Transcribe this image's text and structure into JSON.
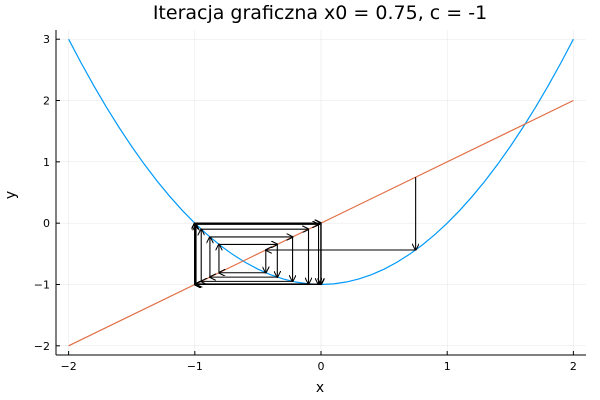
{
  "chart_data": {
    "type": "line",
    "title": "Iteracja graficzna x0 = 0.75, c = -1",
    "xlabel": "x",
    "ylabel": "y",
    "xlim": [
      -2.1,
      2.1
    ],
    "ylim": [
      -2.15,
      3.15
    ],
    "xticks": [
      -2,
      -1,
      0,
      1,
      2
    ],
    "xtick_labels": [
      "−2",
      "−1",
      "0",
      "1",
      "2"
    ],
    "yticks": [
      -2,
      -1,
      0,
      1,
      2,
      3
    ],
    "ytick_labels": [
      "−2",
      "−1",
      "0",
      "1",
      "2",
      "3"
    ],
    "grid": true,
    "series": [
      {
        "color": "#009AFA",
        "x": [
          -2,
          -1.9,
          -1.8,
          -1.7,
          -1.6,
          -1.5,
          -1.4,
          -1.3,
          -1.2,
          -1.1,
          -1,
          -0.9,
          -0.8,
          -0.7,
          -0.6,
          -0.5,
          -0.4,
          -0.3,
          -0.2,
          -0.1,
          0,
          0.1,
          0.2,
          0.3,
          0.4,
          0.5,
          0.6,
          0.7,
          0.8,
          0.9,
          1,
          1.1,
          1.2,
          1.3,
          1.4,
          1.5,
          1.6,
          1.7,
          1.8,
          1.9,
          2
        ],
        "y": [
          3,
          2.61,
          2.24,
          1.89,
          1.56,
          1.25,
          0.96,
          0.69,
          0.44,
          0.21,
          0,
          -0.19,
          -0.36,
          -0.51,
          -0.64,
          -0.75,
          -0.84,
          -0.91,
          -0.96,
          -0.99,
          -1,
          -0.99,
          -0.96,
          -0.91,
          -0.84,
          -0.75,
          -0.64,
          -0.51,
          -0.36,
          -0.19,
          0,
          0.21,
          0.44,
          0.69,
          0.96,
          1.25,
          1.56,
          1.89,
          2.24,
          2.61,
          3
        ]
      },
      {
        "color": "#E26F46",
        "x": [
          -2,
          2
        ],
        "y": [
          -2,
          2
        ]
      }
    ],
    "cobweb": {
      "color": "#000000",
      "points": [
        [
          0.75,
          0.75
        ],
        [
          0.75,
          -0.4375
        ],
        [
          -0.4375,
          -0.4375
        ],
        [
          -0.4375,
          -0.80859
        ],
        [
          -0.80859,
          -0.80859
        ],
        [
          -0.80859,
          -0.34618
        ],
        [
          -0.34618,
          -0.34618
        ],
        [
          -0.34618,
          -0.88016
        ],
        [
          -0.88016,
          -0.88016
        ],
        [
          -0.88016,
          -0.22532
        ],
        [
          -0.22532,
          -0.22532
        ],
        [
          -0.22532,
          -0.94923
        ],
        [
          -0.94923,
          -0.94923
        ],
        [
          -0.94923,
          -0.09896
        ],
        [
          -0.09896,
          -0.09896
        ],
        [
          -0.09896,
          -0.99021
        ],
        [
          -0.99021,
          -0.99021
        ],
        [
          -0.99021,
          -0.01949
        ],
        [
          -0.01949,
          -0.01949
        ],
        [
          -0.01949,
          -0.99962
        ],
        [
          -0.99962,
          -0.99962
        ],
        [
          -0.99962,
          -0.00076
        ],
        [
          -0.00076,
          -0.00076
        ],
        [
          -0.00076,
          -1
        ],
        [
          -1,
          -1
        ],
        [
          -1,
          0
        ],
        [
          0,
          0
        ],
        [
          0,
          -1
        ],
        [
          -1,
          -1
        ],
        [
          -1,
          0
        ],
        [
          0,
          0
        ],
        [
          0,
          -1
        ],
        [
          -1,
          -1
        ],
        [
          -1,
          0
        ],
        [
          0,
          0
        ],
        [
          0,
          -1
        ],
        [
          -1,
          -1
        ],
        [
          -1,
          0
        ],
        [
          0,
          0
        ],
        [
          0,
          -1
        ],
        [
          -1,
          -1
        ],
        [
          -1,
          0
        ]
      ]
    }
  }
}
